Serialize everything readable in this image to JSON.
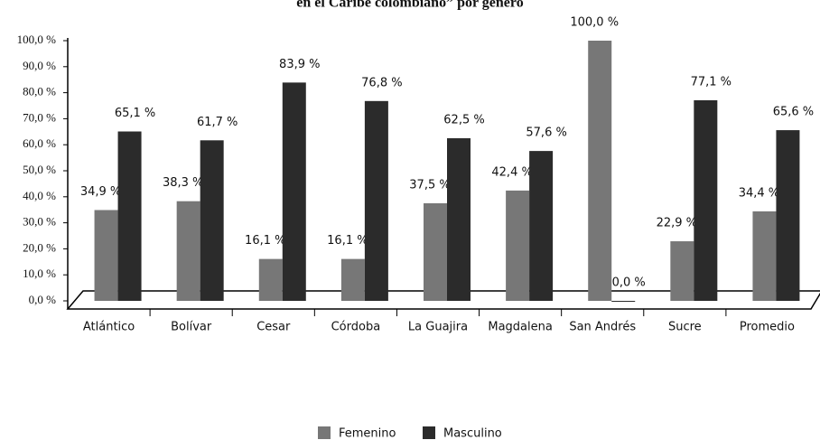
{
  "chart_data": {
    "type": "bar",
    "title": "en el Caribe colombiano” por género",
    "categories": [
      "Atlántico",
      "Bolívar",
      "Cesar",
      "Córdoba",
      "La Guajira",
      "Magdalena",
      "San Andrés",
      "Sucre",
      "Promedio"
    ],
    "series": [
      {
        "name": "Femenino",
        "color": "#777777",
        "values": [
          34.9,
          38.3,
          16.1,
          16.1,
          37.5,
          42.4,
          100.0,
          22.9,
          34.4
        ],
        "value_labels": [
          "34,9 %",
          "38,3 %",
          "16,1 %",
          "16,1 %",
          "37,5 %",
          "42,4 %",
          "100,0 %",
          "22,9 %",
          "34,4 %"
        ]
      },
      {
        "name": "Masculino",
        "color": "#2b2b2b",
        "values": [
          65.1,
          61.7,
          83.9,
          76.8,
          62.5,
          57.6,
          0.0,
          77.1,
          65.6
        ],
        "value_labels": [
          "65,1 %",
          "61,7 %",
          "83,9 %",
          "76,8 %",
          "62,5 %",
          "57,6 %",
          "0,0 %",
          "77,1 %",
          "65,6 %"
        ]
      }
    ],
    "ylim": [
      0,
      100
    ],
    "yticks": [
      {
        "value": 0,
        "label": "0,0 %"
      },
      {
        "value": 10,
        "label": "10,0 %"
      },
      {
        "value": 20,
        "label": "20,0 %"
      },
      {
        "value": 30,
        "label": "30,0 %"
      },
      {
        "value": 40,
        "label": "40,0 %"
      },
      {
        "value": 50,
        "label": "50,0 %"
      },
      {
        "value": 60,
        "label": "60,0 %"
      },
      {
        "value": 70,
        "label": "70,0 %"
      },
      {
        "value": 80,
        "label": "80,0 %"
      },
      {
        "value": 90,
        "label": "90,0 %"
      },
      {
        "value": 100,
        "label": "100,0 %"
      }
    ],
    "legend": "bottom"
  }
}
